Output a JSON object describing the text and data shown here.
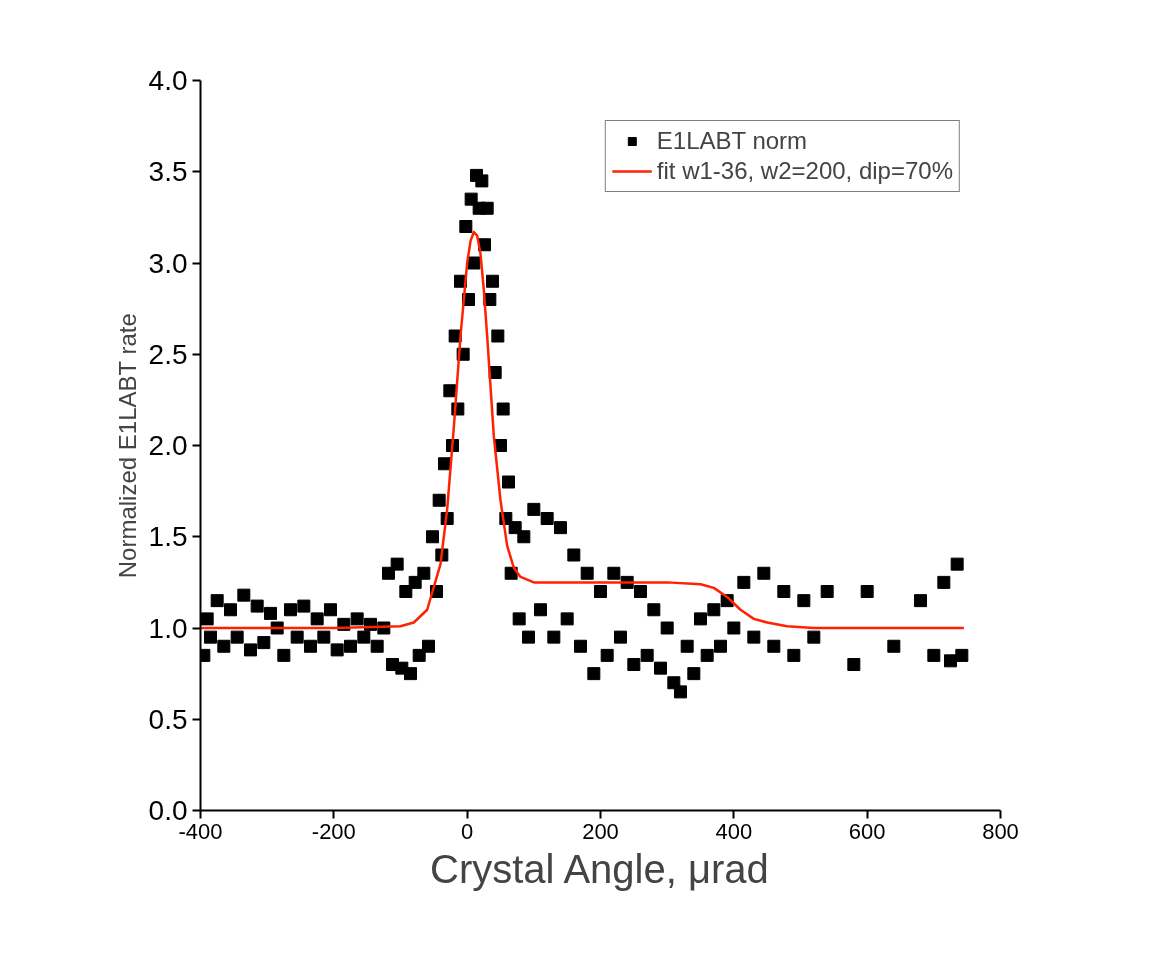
{
  "chart_data": {
    "type": "scatter",
    "xlabel": "Crystal Angle, μrad",
    "ylabel": "Normalized E1LABT rate",
    "xlim": [
      -400,
      800
    ],
    "ylim": [
      0,
      4.0
    ],
    "xticks": [
      -400,
      -200,
      0,
      200,
      400,
      600,
      800
    ],
    "yticks": [
      {
        "value": 0,
        "label": "0.0"
      },
      {
        "value": 0.5,
        "label": "0.5"
      },
      {
        "value": 1,
        "label": "1.0"
      },
      {
        "value": 1.5,
        "label": "1.5"
      },
      {
        "value": 2,
        "label": "2.0"
      },
      {
        "value": 2.5,
        "label": "2.5"
      },
      {
        "value": 3,
        "label": "3.0"
      },
      {
        "value": 3.5,
        "label": "3.5"
      },
      {
        "value": 4,
        "label": "4.0"
      }
    ],
    "grid": false,
    "legend": "top right",
    "series": [
      {
        "name": "E1LABT norm",
        "color": "#000000",
        "marker": "square",
        "x": [
          -395,
          -390,
          -385,
          -375,
          -365,
          -355,
          -345,
          -335,
          -325,
          -315,
          -305,
          -295,
          -285,
          -275,
          -265,
          -255,
          -245,
          -235,
          -225,
          -215,
          -205,
          -195,
          -185,
          -175,
          -165,
          -155,
          -145,
          -135,
          -125,
          -118,
          -112,
          -105,
          -98,
          -92,
          -85,
          -78,
          -72,
          -65,
          -58,
          -52,
          -46,
          -42,
          -38,
          -34,
          -30,
          -26,
          -22,
          -18,
          -14,
          -10,
          -6,
          -2,
          2,
          6,
          10,
          14,
          18,
          22,
          26,
          30,
          34,
          38,
          42,
          46,
          50,
          54,
          58,
          62,
          66,
          72,
          78,
          85,
          92,
          100,
          110,
          120,
          130,
          140,
          150,
          160,
          170,
          180,
          190,
          200,
          210,
          220,
          230,
          240,
          250,
          260,
          270,
          280,
          290,
          300,
          310,
          320,
          330,
          340,
          350,
          360,
          370,
          380,
          390,
          400,
          415,
          430,
          445,
          460,
          475,
          490,
          505,
          520,
          540,
          580,
          600,
          640,
          680,
          700,
          715,
          725,
          735,
          742
        ],
        "values": [
          0.85,
          1.05,
          0.95,
          1.15,
          0.9,
          1.1,
          0.95,
          1.18,
          0.88,
          1.12,
          0.92,
          1.08,
          1.0,
          0.85,
          1.1,
          0.95,
          1.12,
          0.9,
          1.05,
          0.95,
          1.1,
          0.88,
          1.02,
          0.9,
          1.05,
          0.95,
          1.02,
          0.9,
          1.0,
          1.3,
          0.8,
          1.35,
          0.78,
          1.2,
          0.75,
          1.25,
          0.85,
          1.3,
          0.9,
          1.5,
          1.2,
          1.7,
          1.4,
          1.9,
          1.6,
          2.3,
          2.0,
          2.6,
          2.2,
          2.9,
          2.5,
          3.2,
          2.8,
          3.35,
          3.0,
          3.48,
          3.3,
          3.45,
          3.1,
          3.3,
          2.8,
          2.9,
          2.4,
          2.6,
          2.0,
          2.2,
          1.6,
          1.8,
          1.3,
          1.55,
          1.05,
          1.5,
          0.95,
          1.65,
          1.1,
          1.6,
          0.95,
          1.55,
          1.05,
          1.4,
          0.9,
          1.3,
          0.75,
          1.2,
          0.85,
          1.3,
          0.95,
          1.25,
          0.8,
          1.2,
          0.85,
          1.1,
          0.78,
          1.0,
          0.7,
          0.65,
          0.9,
          0.75,
          1.05,
          0.85,
          1.1,
          0.9,
          1.15,
          1.0,
          1.25,
          0.95,
          1.3,
          0.9,
          1.2,
          0.85,
          1.15,
          0.95,
          1.2,
          0.8,
          1.2,
          0.9,
          1.15,
          0.85,
          1.25,
          0.82,
          1.35,
          0.85
        ]
      },
      {
        "name": "fit w1-36, w2=200, dip=70%",
        "type": "line",
        "color": "#ff2200",
        "x": [
          -400,
          -200,
          -100,
          -80,
          -60,
          -40,
          -30,
          -20,
          -10,
          0,
          5,
          10,
          15,
          20,
          25,
          30,
          40,
          50,
          60,
          70,
          80,
          100,
          150,
          200,
          250,
          300,
          350,
          370,
          390,
          410,
          430,
          450,
          480,
          520,
          600,
          745
        ],
        "values": [
          1.0,
          1.0,
          1.01,
          1.03,
          1.1,
          1.35,
          1.65,
          2.1,
          2.6,
          3.0,
          3.12,
          3.17,
          3.15,
          3.05,
          2.85,
          2.6,
          2.05,
          1.7,
          1.45,
          1.33,
          1.28,
          1.25,
          1.25,
          1.25,
          1.25,
          1.25,
          1.24,
          1.22,
          1.17,
          1.1,
          1.05,
          1.03,
          1.01,
          1.0,
          1.0,
          1.0
        ]
      }
    ]
  }
}
